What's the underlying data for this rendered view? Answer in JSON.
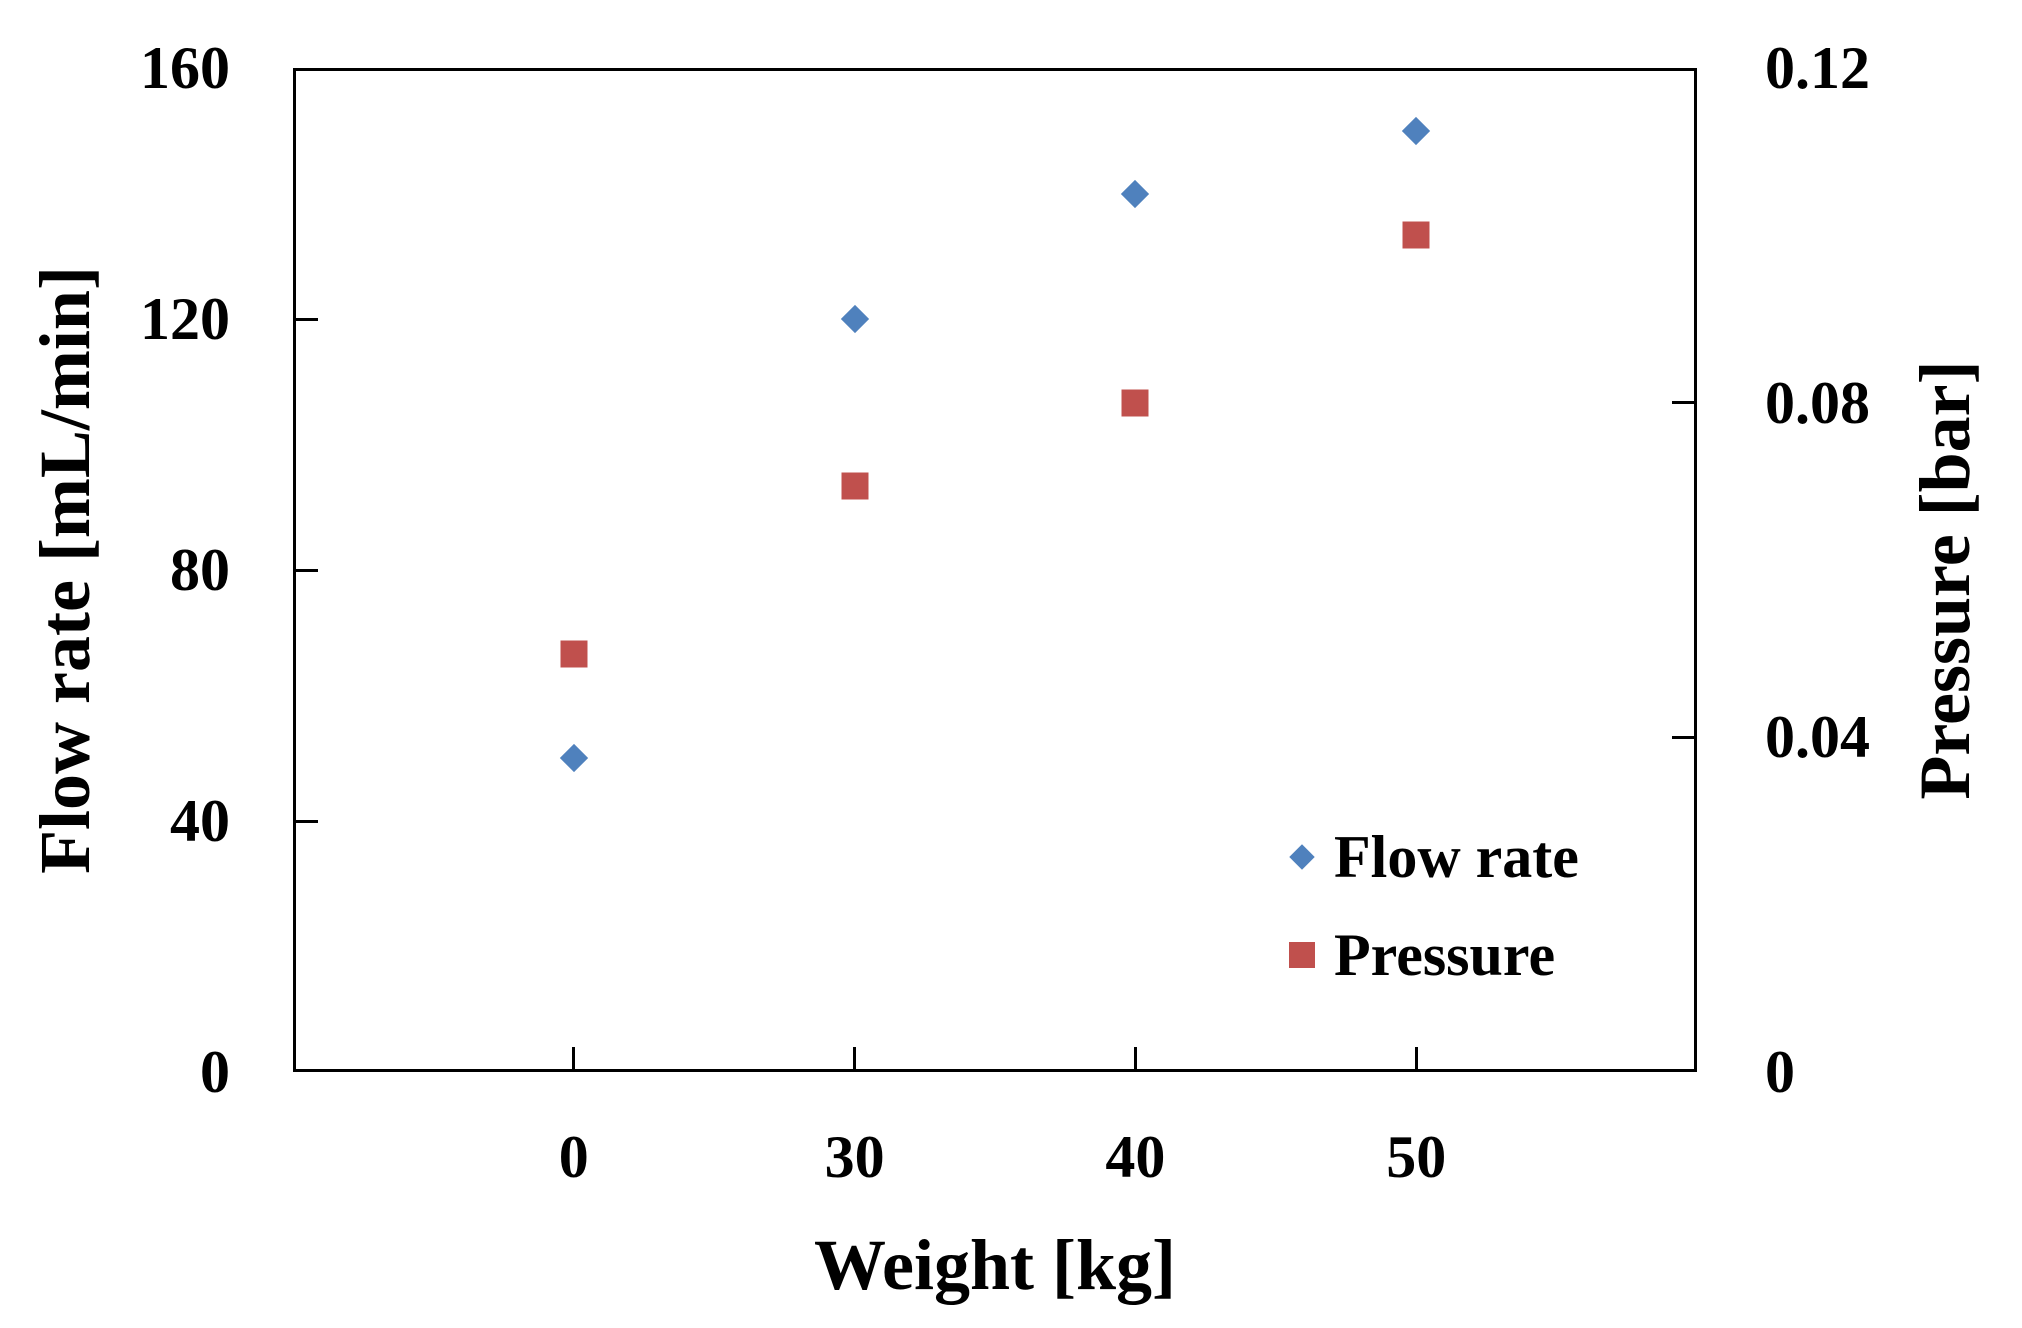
{
  "chart_data": {
    "type": "scatter",
    "categories": [
      "0",
      "30",
      "40",
      "50"
    ],
    "series": [
      {
        "name": "Flow rate",
        "axis": "left",
        "marker": "diamond",
        "color": "#4F81BD",
        "values": [
          50,
          120,
          140,
          150
        ]
      },
      {
        "name": "Pressure",
        "axis": "right",
        "marker": "square",
        "color": "#C0504D",
        "values": [
          0.05,
          0.07,
          0.08,
          0.1
        ]
      }
    ],
    "title": "",
    "xlabel": "Weight [kg]",
    "ylabel_left": "Flow rate [mL/min]",
    "ylabel_right": "Pressure [bar]",
    "left_axis": {
      "min": 0,
      "max": 160,
      "tick_values": [
        160,
        120,
        80,
        40,
        0
      ],
      "tick_labels": [
        "160",
        "120",
        "80",
        "40",
        "0"
      ],
      "inner_tickmark_values": [
        120,
        80,
        40
      ]
    },
    "right_axis": {
      "min": 0,
      "max": 0.12,
      "tick_values": [
        0.12,
        0.08,
        0.04,
        0
      ],
      "tick_labels": [
        "0.12",
        "0.08",
        "0.04",
        "0"
      ],
      "inner_tickmark_values": [
        0.08,
        0.04
      ]
    },
    "x_axis": {
      "tick_labels": [
        "0",
        "30",
        "40",
        "50"
      ]
    },
    "grid": false,
    "legend": {
      "position": "inside-bottom-right",
      "entries": [
        "Flow rate",
        "Pressure"
      ]
    }
  },
  "colors": {
    "flow_rate": "#4F81BD",
    "pressure": "#C0504D",
    "axis_line": "#000000",
    "text": "#000000",
    "background": "#FFFFFF"
  }
}
